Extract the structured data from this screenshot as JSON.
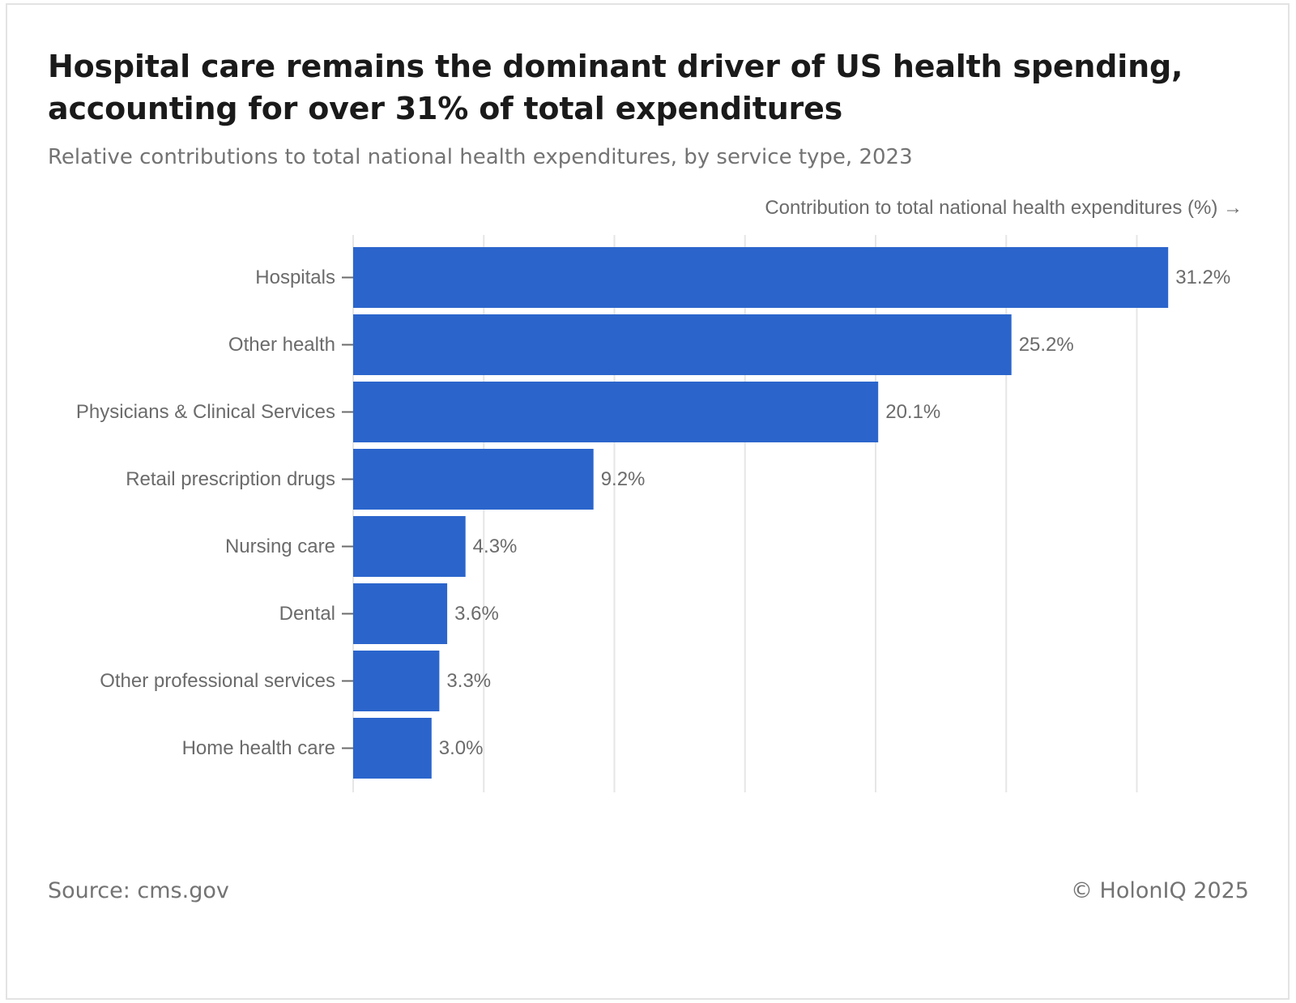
{
  "header": {
    "title": "Hospital care remains the dominant driver of US health spending, accounting for over 31% of total expenditures",
    "subtitle": "Relative contributions to total national health expenditures, by service type, 2023"
  },
  "footer": {
    "source": "Source: cms.gov",
    "copyright": "© HolonIQ 2025"
  },
  "colors": {
    "bar": "#2b65cc",
    "gridline": "#e6e6e6",
    "label_text": "#6b6b6b"
  },
  "chart_data": {
    "type": "bar",
    "orientation": "horizontal",
    "title": "Hospital care remains the dominant driver of US health spending, accounting for over 31% of total expenditures",
    "subtitle": "Relative contributions to total national health expenditures, by service type, 2023",
    "xlabel": "Contribution to total national health expenditures (%) →",
    "ylabel": "",
    "categories": [
      "Hospitals",
      "Other health",
      "Physicians & Clinical Services",
      "Retail prescription drugs",
      "Nursing care",
      "Dental",
      "Other professional services",
      "Home health care"
    ],
    "values": [
      31.2,
      25.2,
      20.1,
      9.2,
      4.3,
      3.6,
      3.3,
      3.0
    ],
    "data_labels": [
      "31.2%",
      "25.2%",
      "20.1%",
      "9.2%",
      "4.3%",
      "3.6%",
      "3.3%",
      "3.0%"
    ],
    "xlim": [
      0,
      33
    ],
    "gridlines_at": [
      0,
      5,
      10,
      15,
      20,
      25,
      30
    ],
    "grid": true,
    "legend": "none"
  }
}
